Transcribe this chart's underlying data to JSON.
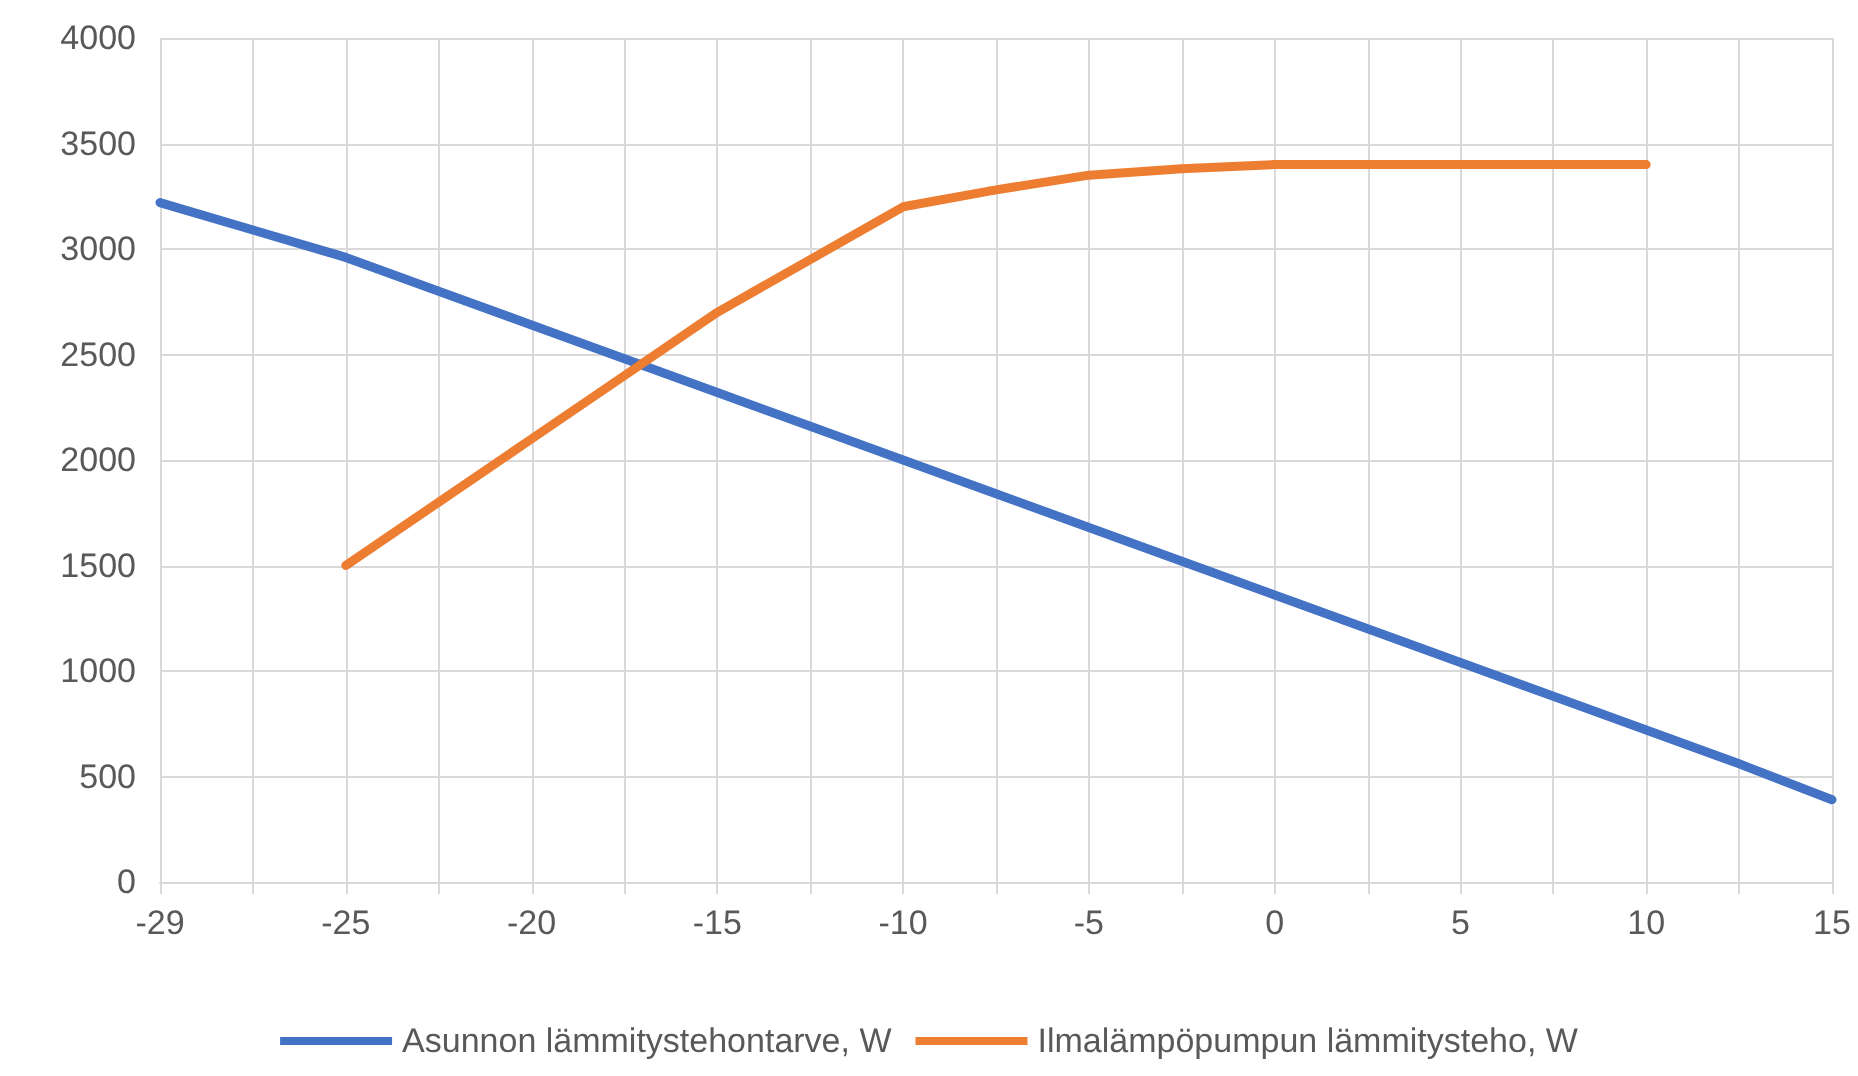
{
  "chart_data": {
    "type": "line",
    "categories": [
      "-29",
      null,
      "-25",
      null,
      "-20",
      null,
      "-15",
      null,
      "-10",
      null,
      "-5",
      null,
      "0",
      null,
      "5",
      null,
      "10",
      null,
      "15"
    ],
    "series": [
      {
        "name": "Asunnon lämmitystehontarve, W",
        "color": "#4472c4",
        "values": [
          3220,
          3090,
          2960,
          2800,
          2640,
          2480,
          2320,
          2160,
          2000,
          1840,
          1680,
          1520,
          1360,
          1200,
          1040,
          880,
          720,
          560,
          390
        ]
      },
      {
        "name": "Ilmalämpöpumpun lämmitysteho, W",
        "color": "#ed7d31",
        "values": [
          null,
          null,
          1500,
          1800,
          2100,
          2400,
          2700,
          2950,
          3200,
          3280,
          3350,
          3380,
          3400,
          3400,
          3400,
          3400,
          3400,
          null,
          null
        ]
      }
    ],
    "ylim": [
      0,
      4000
    ],
    "yticks": [
      0,
      500,
      1000,
      1500,
      2000,
      2500,
      3000,
      3500,
      4000
    ],
    "grid": true,
    "legend": "bottom",
    "marker": "none",
    "line_style": "solid"
  }
}
